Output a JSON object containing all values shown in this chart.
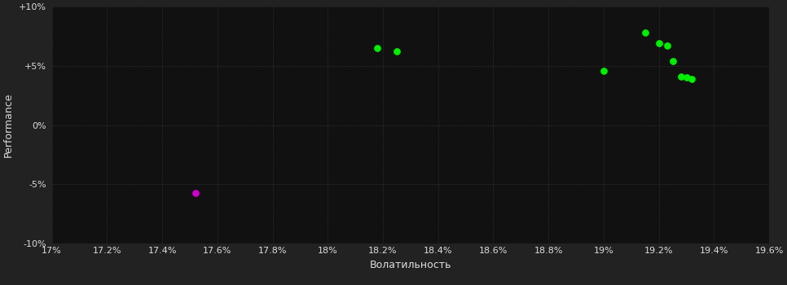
{
  "background_color": "#222222",
  "plot_bg_color": "#111111",
  "grid_color": "#3a3a3a",
  "text_color": "#dddddd",
  "xlabel": "Волатильность",
  "ylabel": "Performance",
  "xlim": [
    0.17,
    0.196
  ],
  "ylim": [
    -0.1,
    0.1
  ],
  "xticks": [
    0.17,
    0.172,
    0.174,
    0.176,
    0.178,
    0.18,
    0.182,
    0.184,
    0.186,
    0.188,
    0.19,
    0.192,
    0.194,
    0.196
  ],
  "yticks": [
    -0.1,
    -0.05,
    0.0,
    0.05,
    0.1
  ],
  "green_points": [
    [
      0.1818,
      0.065
    ],
    [
      0.1825,
      0.062
    ],
    [
      0.19,
      0.046
    ],
    [
      0.1915,
      0.078
    ],
    [
      0.192,
      0.069
    ],
    [
      0.1923,
      0.067
    ],
    [
      0.1925,
      0.054
    ],
    [
      0.1928,
      0.041
    ],
    [
      0.193,
      0.04
    ],
    [
      0.1932,
      0.039
    ]
  ],
  "magenta_points": [
    [
      0.1752,
      -0.057
    ]
  ],
  "green_color": "#00ee00",
  "magenta_color": "#cc00cc",
  "marker_size": 28,
  "font_size_labels": 9,
  "font_size_ticks": 8
}
